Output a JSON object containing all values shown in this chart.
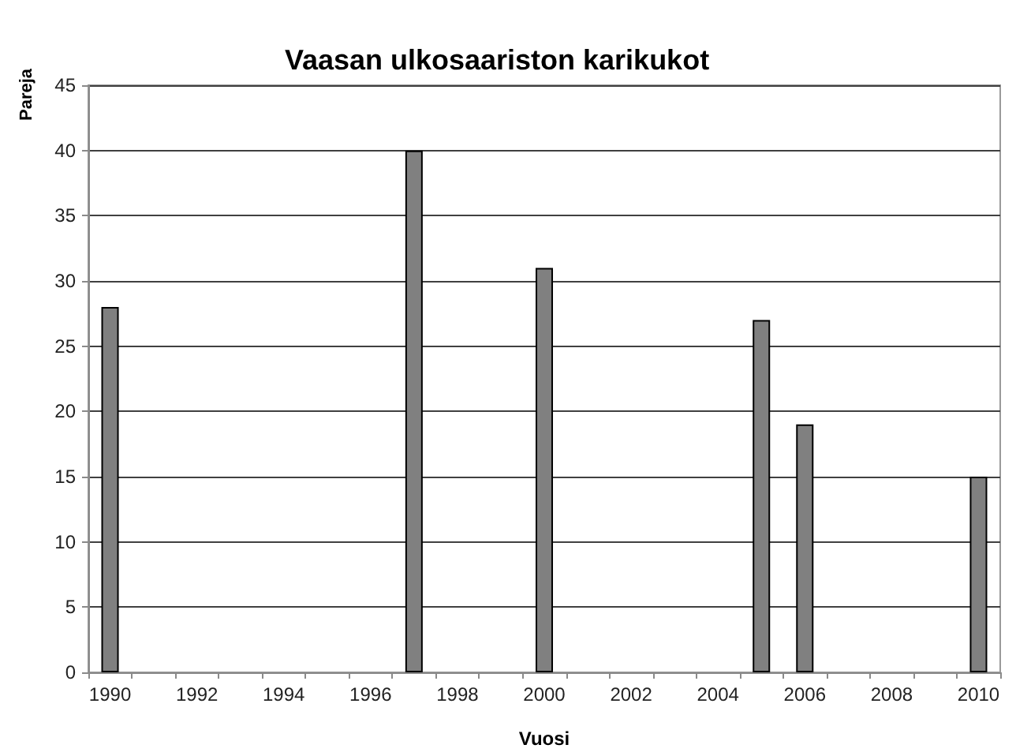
{
  "chart_data": {
    "type": "bar",
    "title": "Vaasan ulkosaariston karikukot",
    "xlabel": "Vuosi",
    "ylabel": "Pareja",
    "categories": [
      "1990",
      null,
      "1992",
      null,
      "1994",
      null,
      "1996",
      null,
      "1998",
      null,
      "2000",
      null,
      "2002",
      null,
      "2004",
      null,
      "2006",
      null,
      "2008",
      null,
      "2010"
    ],
    "values": [
      28,
      null,
      null,
      null,
      null,
      null,
      null,
      40,
      null,
      null,
      31,
      null,
      null,
      null,
      null,
      27,
      19,
      null,
      null,
      null,
      15
    ],
    "color": "#808080",
    "ylim": [
      0,
      45
    ],
    "yticks": [
      0,
      5,
      10,
      15,
      20,
      25,
      30,
      35,
      40,
      45
    ],
    "grid": "y"
  }
}
